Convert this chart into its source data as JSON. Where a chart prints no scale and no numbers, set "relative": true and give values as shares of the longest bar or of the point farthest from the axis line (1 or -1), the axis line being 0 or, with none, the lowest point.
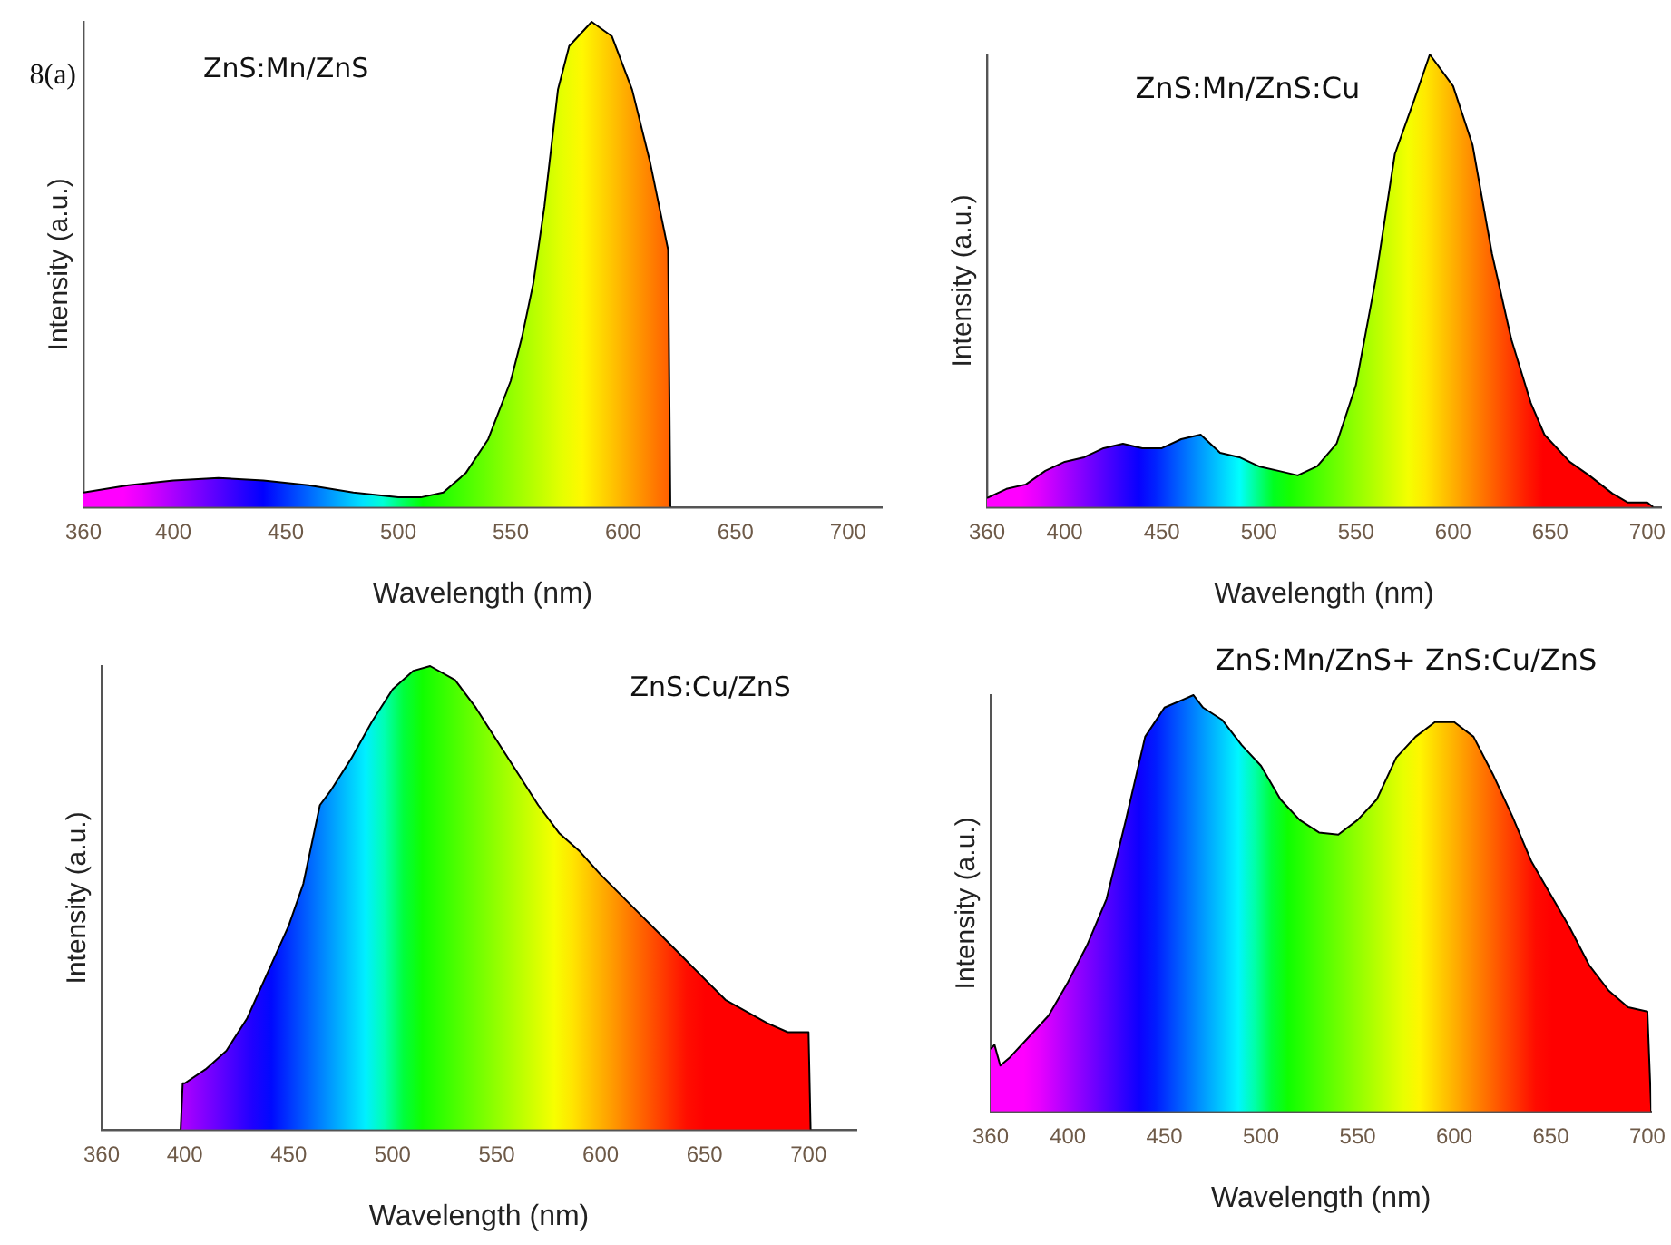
{
  "chart_data": [
    {
      "type": "area",
      "title": "ZnS:Mn/ZnS",
      "xlabel": "Wavelength (nm)",
      "ylabel": "Intensity (a.u.)",
      "annotations": [
        "8(a)"
      ],
      "relative": true,
      "grid": false,
      "legend": false,
      "marker": "none",
      "xlim": [
        360,
        715
      ],
      "xticks": [
        360,
        400,
        450,
        500,
        550,
        600,
        650,
        700
      ],
      "x": [
        360,
        380,
        400,
        420,
        440,
        460,
        480,
        500,
        510,
        520,
        530,
        540,
        550,
        555,
        560,
        565,
        571,
        576,
        586,
        595,
        604,
        612,
        620,
        621
      ],
      "series": [
        {
          "color": "#000000",
          "values": [
            0.03,
            0.045,
            0.055,
            0.06,
            0.055,
            0.045,
            0.03,
            0.02,
            0.02,
            0.03,
            0.07,
            0.14,
            0.26,
            0.35,
            0.46,
            0.62,
            0.86,
            0.95,
            1.0,
            0.97,
            0.86,
            0.71,
            0.53,
            0
          ]
        }
      ]
    },
    {
      "type": "area",
      "title": "ZnS:Mn/ZnS:Cu",
      "xlabel": "Wavelength (nm)",
      "ylabel": "Intensity (a.u.)",
      "relative": true,
      "grid": false,
      "legend": false,
      "marker": "none",
      "xlim": [
        360,
        707
      ],
      "xticks": [
        360,
        400,
        450,
        500,
        550,
        600,
        650,
        700
      ],
      "x": [
        360,
        370,
        380,
        390,
        400,
        410,
        420,
        430,
        440,
        450,
        460,
        470,
        480,
        490,
        500,
        510,
        520,
        530,
        540,
        550,
        560,
        570,
        580,
        588,
        600,
        610,
        620,
        630,
        640,
        647,
        660,
        670,
        682,
        690,
        700,
        703
      ],
      "series": [
        {
          "color": "#000000",
          "values": [
            0.02,
            0.04,
            0.05,
            0.08,
            0.1,
            0.11,
            0.13,
            0.14,
            0.13,
            0.13,
            0.15,
            0.16,
            0.12,
            0.11,
            0.09,
            0.08,
            0.07,
            0.09,
            0.14,
            0.27,
            0.5,
            0.78,
            0.9,
            1.0,
            0.93,
            0.8,
            0.56,
            0.37,
            0.23,
            0.16,
            0.1,
            0.07,
            0.03,
            0.01,
            0.01,
            0
          ]
        }
      ]
    },
    {
      "type": "area",
      "title": "ZnS:Cu/ZnS",
      "xlabel": "Wavelength (nm)",
      "ylabel": "Intensity (a.u.)",
      "relative": true,
      "grid": false,
      "legend": false,
      "marker": "none",
      "xlim": [
        360,
        723
      ],
      "xticks": [
        360,
        400,
        450,
        500,
        550,
        600,
        650,
        700
      ],
      "x": [
        398,
        399,
        400,
        410,
        420,
        430,
        440,
        450,
        457,
        465,
        470,
        480,
        490,
        500,
        510,
        518,
        530,
        540,
        550,
        560,
        570,
        580,
        590,
        600,
        620,
        640,
        660,
        680,
        690,
        700,
        701
      ],
      "series": [
        {
          "color": "#000000",
          "values": [
            0,
            0.1,
            0.1,
            0.13,
            0.17,
            0.24,
            0.34,
            0.44,
            0.53,
            0.7,
            0.73,
            0.8,
            0.88,
            0.95,
            0.99,
            1.0,
            0.97,
            0.91,
            0.84,
            0.77,
            0.7,
            0.64,
            0.6,
            0.55,
            0.46,
            0.37,
            0.28,
            0.23,
            0.21,
            0.21,
            0
          ]
        }
      ]
    },
    {
      "type": "area",
      "title": "ZnS:Mn/ZnS+ ZnS:Cu/ZnS",
      "xlabel": "Wavelength (nm)",
      "ylabel": "Intensity (a.u.)",
      "relative": true,
      "grid": false,
      "legend": false,
      "marker": "none",
      "xlim": [
        360,
        702
      ],
      "xticks": [
        360,
        400,
        450,
        500,
        550,
        600,
        650,
        700
      ],
      "x": [
        360,
        362,
        365,
        370,
        380,
        390,
        400,
        410,
        420,
        430,
        440,
        450,
        460,
        465,
        470,
        480,
        490,
        500,
        510,
        520,
        530,
        540,
        550,
        560,
        570,
        580,
        590,
        600,
        610,
        620,
        630,
        640,
        650,
        660,
        670,
        680,
        690,
        700,
        702
      ],
      "series": [
        {
          "color": "#000000",
          "values": [
            0.15,
            0.16,
            0.11,
            0.13,
            0.18,
            0.23,
            0.31,
            0.4,
            0.51,
            0.7,
            0.9,
            0.97,
            0.99,
            1.0,
            0.97,
            0.94,
            0.88,
            0.83,
            0.75,
            0.7,
            0.67,
            0.665,
            0.7,
            0.75,
            0.85,
            0.9,
            0.935,
            0.935,
            0.9,
            0.81,
            0.71,
            0.6,
            0.52,
            0.44,
            0.35,
            0.29,
            0.25,
            0.24,
            0
          ]
        }
      ]
    }
  ]
}
